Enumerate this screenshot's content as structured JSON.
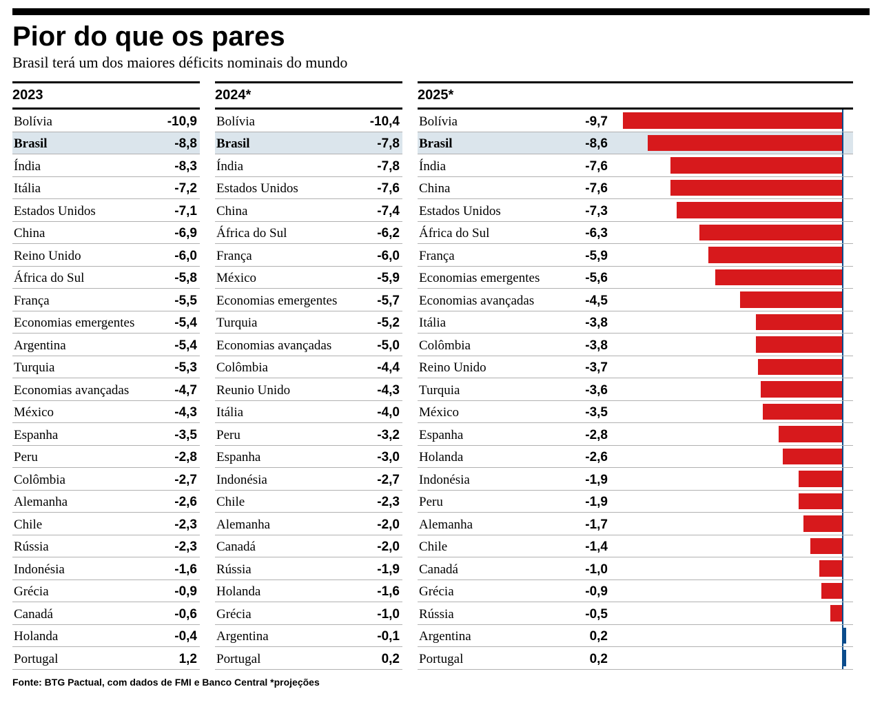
{
  "title": "Pior do que os pares",
  "subtitle": "Brasil terá um dos maiores déficits nominais do mundo",
  "footnote": "Fonte: BTG Pactual, com dados de FMI e Banco Central  *projeções",
  "highlight_bg": "#dbe5ec",
  "chart": {
    "bar_color_neg": "#d7191c",
    "bar_color_pos": "#0b4c8c",
    "axis_color": "#0b4c8c",
    "xmin": -10.0,
    "xmax": 0.5
  },
  "columns": [
    {
      "label": "2023",
      "has_bars": false,
      "rows": [
        {
          "country": "Bolívia",
          "value": -10.9,
          "display": "-10,9"
        },
        {
          "country": "Brasil",
          "value": -8.8,
          "display": "-8,8",
          "highlight": true
        },
        {
          "country": "Índia",
          "value": -8.3,
          "display": "-8,3"
        },
        {
          "country": "Itália",
          "value": -7.2,
          "display": "-7,2"
        },
        {
          "country": "Estados Unidos",
          "value": -7.1,
          "display": "-7,1"
        },
        {
          "country": "China",
          "value": -6.9,
          "display": "-6,9"
        },
        {
          "country": "Reino Unido",
          "value": -6.0,
          "display": "-6,0"
        },
        {
          "country": "África do Sul",
          "value": -5.8,
          "display": "-5,8"
        },
        {
          "country": "França",
          "value": -5.5,
          "display": "-5,5"
        },
        {
          "country": "Economias emergentes",
          "value": -5.4,
          "display": "-5,4"
        },
        {
          "country": "Argentina",
          "value": -5.4,
          "display": "-5,4"
        },
        {
          "country": "Turquia",
          "value": -5.3,
          "display": "-5,3"
        },
        {
          "country": "Economias avançadas",
          "value": -4.7,
          "display": "-4,7"
        },
        {
          "country": "México",
          "value": -4.3,
          "display": "-4,3"
        },
        {
          "country": "Espanha",
          "value": -3.5,
          "display": "-3,5"
        },
        {
          "country": "Peru",
          "value": -2.8,
          "display": "-2,8"
        },
        {
          "country": "Colômbia",
          "value": -2.7,
          "display": "-2,7"
        },
        {
          "country": "Alemanha",
          "value": -2.6,
          "display": "-2,6"
        },
        {
          "country": "Chile",
          "value": -2.3,
          "display": "-2,3"
        },
        {
          "country": "Rússia",
          "value": -2.3,
          "display": "-2,3"
        },
        {
          "country": "Indonésia",
          "value": -1.6,
          "display": "-1,6"
        },
        {
          "country": "Grécia",
          "value": -0.9,
          "display": "-0,9"
        },
        {
          "country": "Canadá",
          "value": -0.6,
          "display": "-0,6"
        },
        {
          "country": "Holanda",
          "value": -0.4,
          "display": "-0,4"
        },
        {
          "country": "Portugal",
          "value": 1.2,
          "display": "1,2"
        }
      ]
    },
    {
      "label": "2024*",
      "has_bars": false,
      "rows": [
        {
          "country": "Bolívia",
          "value": -10.4,
          "display": "-10,4"
        },
        {
          "country": "Brasil",
          "value": -7.8,
          "display": "-7,8",
          "highlight": true
        },
        {
          "country": "Índia",
          "value": -7.8,
          "display": "-7,8"
        },
        {
          "country": "Estados Unidos",
          "value": -7.6,
          "display": "-7,6"
        },
        {
          "country": "China",
          "value": -7.4,
          "display": "-7,4"
        },
        {
          "country": "África do Sul",
          "value": -6.2,
          "display": "-6,2"
        },
        {
          "country": "França",
          "value": -6.0,
          "display": "-6,0"
        },
        {
          "country": "México",
          "value": -5.9,
          "display": "-5,9"
        },
        {
          "country": "Economias emergentes",
          "value": -5.7,
          "display": "-5,7"
        },
        {
          "country": "Turquia",
          "value": -5.2,
          "display": "-5,2"
        },
        {
          "country": "Economias avançadas",
          "value": -5.0,
          "display": "-5,0"
        },
        {
          "country": "Colômbia",
          "value": -4.4,
          "display": "-4,4"
        },
        {
          "country": "Reunio Unido",
          "value": -4.3,
          "display": "-4,3"
        },
        {
          "country": "Itália",
          "value": -4.0,
          "display": "-4,0"
        },
        {
          "country": "Peru",
          "value": -3.2,
          "display": "-3,2"
        },
        {
          "country": "Espanha",
          "value": -3.0,
          "display": "-3,0"
        },
        {
          "country": "Indonésia",
          "value": -2.7,
          "display": "-2,7"
        },
        {
          "country": "Chile",
          "value": -2.3,
          "display": "-2,3"
        },
        {
          "country": "Alemanha",
          "value": -2.0,
          "display": "-2,0"
        },
        {
          "country": "Canadá",
          "value": -2.0,
          "display": "-2,0"
        },
        {
          "country": "Rússia",
          "value": -1.9,
          "display": "-1,9"
        },
        {
          "country": "Holanda",
          "value": -1.6,
          "display": "-1,6"
        },
        {
          "country": "Grécia",
          "value": -1.0,
          "display": "-1,0"
        },
        {
          "country": "Argentina",
          "value": -0.1,
          "display": "-0,1"
        },
        {
          "country": "Portugal",
          "value": 0.2,
          "display": "0,2"
        }
      ]
    },
    {
      "label": "2025*",
      "has_bars": true,
      "rows": [
        {
          "country": "Bolívia",
          "value": -9.7,
          "display": "-9,7"
        },
        {
          "country": "Brasil",
          "value": -8.6,
          "display": "-8,6",
          "highlight": true
        },
        {
          "country": "Índia",
          "value": -7.6,
          "display": "-7,6"
        },
        {
          "country": "China",
          "value": -7.6,
          "display": "-7,6"
        },
        {
          "country": "Estados Unidos",
          "value": -7.3,
          "display": "-7,3"
        },
        {
          "country": "África do Sul",
          "value": -6.3,
          "display": "-6,3"
        },
        {
          "country": "França",
          "value": -5.9,
          "display": "-5,9"
        },
        {
          "country": "Economias emergentes",
          "value": -5.6,
          "display": "-5,6"
        },
        {
          "country": "Economias avançadas",
          "value": -4.5,
          "display": "-4,5"
        },
        {
          "country": "Itália",
          "value": -3.8,
          "display": "-3,8"
        },
        {
          "country": "Colômbia",
          "value": -3.8,
          "display": "-3,8"
        },
        {
          "country": "Reino Unido",
          "value": -3.7,
          "display": "-3,7"
        },
        {
          "country": "Turquia",
          "value": -3.6,
          "display": "-3,6"
        },
        {
          "country": "México",
          "value": -3.5,
          "display": "-3,5"
        },
        {
          "country": "Espanha",
          "value": -2.8,
          "display": "-2,8"
        },
        {
          "country": "Holanda",
          "value": -2.6,
          "display": "-2,6"
        },
        {
          "country": "Indonésia",
          "value": -1.9,
          "display": "-1,9"
        },
        {
          "country": "Peru",
          "value": -1.9,
          "display": "-1,9"
        },
        {
          "country": "Alemanha",
          "value": -1.7,
          "display": "-1,7"
        },
        {
          "country": "Chile",
          "value": -1.4,
          "display": "-1,4"
        },
        {
          "country": "Canadá",
          "value": -1.0,
          "display": "-1,0"
        },
        {
          "country": "Grécia",
          "value": -0.9,
          "display": "-0,9"
        },
        {
          "country": "Rússia",
          "value": -0.5,
          "display": "-0,5"
        },
        {
          "country": "Argentina",
          "value": 0.2,
          "display": "0,2"
        },
        {
          "country": "Portugal",
          "value": 0.2,
          "display": "0,2"
        }
      ]
    }
  ]
}
